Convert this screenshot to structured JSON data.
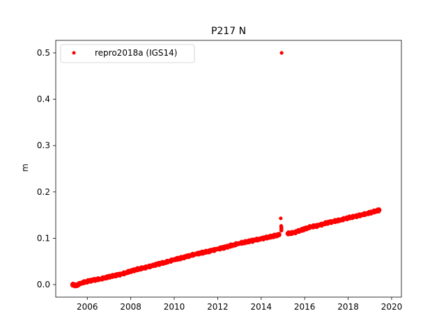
{
  "chart_data": {
    "type": "scatter",
    "title": "P217 N",
    "xlabel": "",
    "ylabel": "m",
    "xlim": [
      2004.55,
      2020.45
    ],
    "ylim": [
      -0.027,
      0.527
    ],
    "x_ticks": [
      2006,
      2008,
      2010,
      2012,
      2014,
      2016,
      2018,
      2020
    ],
    "x_tick_labels": [
      "2006",
      "2008",
      "2010",
      "2012",
      "2014",
      "2016",
      "2018",
      "2020"
    ],
    "y_ticks": [
      0.0,
      0.1,
      0.2,
      0.3,
      0.4,
      0.5
    ],
    "y_tick_labels": [
      "0.0",
      "0.1",
      "0.2",
      "0.3",
      "0.4",
      "0.5"
    ],
    "grid": false,
    "legend_position": "upper-left",
    "series": [
      {
        "name": "repro2018a (IGS14)",
        "color": "#ff0000",
        "marker": "circle",
        "points": [
          [
            2005.3,
            0.0
          ],
          [
            2005.5,
            -0.002
          ],
          [
            2005.7,
            0.003
          ],
          [
            2006.0,
            0.007
          ],
          [
            2006.3,
            0.01
          ],
          [
            2006.6,
            0.012
          ],
          [
            2007.0,
            0.017
          ],
          [
            2007.3,
            0.02
          ],
          [
            2007.6,
            0.023
          ],
          [
            2008.0,
            0.029
          ],
          [
            2008.3,
            0.033
          ],
          [
            2008.6,
            0.036
          ],
          [
            2009.0,
            0.041
          ],
          [
            2009.3,
            0.045
          ],
          [
            2009.6,
            0.048
          ],
          [
            2010.0,
            0.054
          ],
          [
            2010.3,
            0.057
          ],
          [
            2010.6,
            0.061
          ],
          [
            2011.0,
            0.066
          ],
          [
            2011.3,
            0.069
          ],
          [
            2011.6,
            0.072
          ],
          [
            2012.0,
            0.077
          ],
          [
            2012.3,
            0.08
          ],
          [
            2012.6,
            0.084
          ],
          [
            2013.0,
            0.089
          ],
          [
            2013.3,
            0.092
          ],
          [
            2013.6,
            0.095
          ],
          [
            2014.0,
            0.099
          ],
          [
            2014.3,
            0.102
          ],
          [
            2014.6,
            0.105
          ],
          [
            2014.85,
            0.108
          ],
          [
            2014.9,
            0.143
          ],
          [
            2014.92,
            0.126
          ],
          [
            2014.93,
            0.118
          ],
          [
            2014.94,
            0.5
          ],
          [
            2015.2,
            0.11
          ],
          [
            2015.5,
            0.112
          ],
          [
            2015.8,
            0.117
          ],
          [
            2016.0,
            0.12
          ],
          [
            2016.3,
            0.125
          ],
          [
            2016.6,
            0.127
          ],
          [
            2017.0,
            0.133
          ],
          [
            2017.3,
            0.136
          ],
          [
            2017.6,
            0.139
          ],
          [
            2018.0,
            0.144
          ],
          [
            2018.3,
            0.147
          ],
          [
            2018.6,
            0.15
          ],
          [
            2019.0,
            0.155
          ],
          [
            2019.3,
            0.159
          ],
          [
            2019.45,
            0.161
          ]
        ]
      }
    ]
  }
}
